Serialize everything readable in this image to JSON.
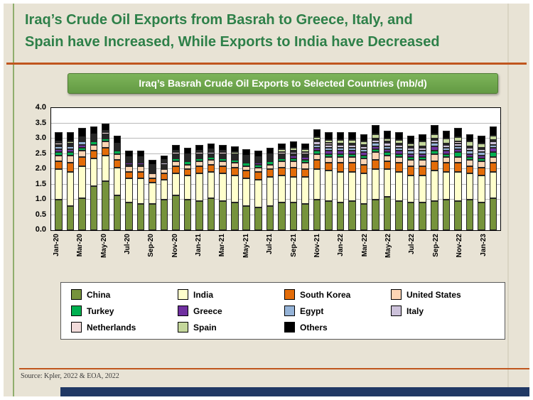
{
  "slide": {
    "title_line1": "Iraq’s Crude Oil Exports from Basrah to Greece, Italy, and",
    "title_line2": "Spain have Increased, While Exports to India have Decreased",
    "source": "Source: Kpler, 2022 & EOA, 2022"
  },
  "chart": {
    "header": "Iraq’s Basrah Crude Oil Exports to Selected Countries (mb/d)"
  },
  "colors": {
    "slide_background": "#e8e3d5",
    "title_green": "#2e8049",
    "rule_orange": "#c0561e",
    "header_banner_green": "#70ad47",
    "bottom_bar_navy": "#203864"
  },
  "chart_data": {
    "type": "bar",
    "stacked": true,
    "title": "Iraq’s Basrah Crude Oil Exports to Selected Countries (mb/d)",
    "ylabel": "mb/d",
    "xlabel": "",
    "ylim": [
      0,
      4.0
    ],
    "y_ticks": [
      0.0,
      0.5,
      1.0,
      1.5,
      2.0,
      2.5,
      3.0,
      3.5,
      4.0
    ],
    "grid": "horizontal",
    "legend_position": "bottom",
    "x_ticks_shown_every": 2,
    "categories": [
      "Jan-20",
      "Feb-20",
      "Mar-20",
      "Apr-20",
      "May-20",
      "Jun-20",
      "Jul-20",
      "Aug-20",
      "Sep-20",
      "Oct-20",
      "Nov-20",
      "Dec-20",
      "Jan-21",
      "Feb-21",
      "Mar-21",
      "Apr-21",
      "May-21",
      "Jun-21",
      "Jul-21",
      "Aug-21",
      "Sep-21",
      "Oct-21",
      "Nov-21",
      "Dec-21",
      "Jan-22",
      "Feb-22",
      "Mar-22",
      "Apr-22",
      "May-22",
      "Jun-22",
      "Jul-22",
      "Aug-22",
      "Sep-22",
      "Oct-22",
      "Nov-22",
      "Dec-22",
      "Jan-23",
      "Feb-23"
    ],
    "x_tick_labels": [
      "Jan-20",
      "Mar-20",
      "May-20",
      "Jul-20",
      "Sep-20",
      "Nov-20",
      "Jan-21",
      "Mar-21",
      "May-21",
      "Jul-21",
      "Sep-21",
      "Nov-21",
      "Jan-22",
      "Mar-22",
      "May-22",
      "Jul-22",
      "Sep-22",
      "Nov-22",
      "Jan-23"
    ],
    "series": [
      {
        "name": "China",
        "color": "#76933c",
        "values": [
          1.0,
          0.8,
          1.05,
          1.45,
          1.6,
          1.15,
          0.9,
          0.85,
          0.85,
          1.0,
          1.15,
          1.0,
          0.95,
          1.05,
          0.95,
          0.9,
          0.8,
          0.75,
          0.8,
          0.9,
          0.9,
          0.85,
          1.0,
          0.95,
          0.9,
          0.95,
          0.85,
          1.0,
          1.1,
          0.95,
          0.9,
          0.9,
          0.95,
          1.0,
          0.95,
          1.0,
          0.9,
          1.05
        ]
      },
      {
        "name": "India",
        "color": "#ffffcc",
        "values": [
          1.0,
          1.1,
          1.05,
          0.9,
          0.85,
          0.9,
          0.8,
          0.85,
          0.7,
          0.65,
          0.7,
          0.8,
          0.9,
          0.85,
          0.9,
          0.9,
          0.9,
          0.9,
          0.95,
          0.9,
          0.85,
          0.9,
          1.0,
          1.0,
          1.0,
          0.95,
          1.0,
          1.0,
          0.9,
          0.95,
          0.9,
          0.9,
          1.0,
          0.9,
          0.95,
          0.85,
          0.9,
          0.85
        ]
      },
      {
        "name": "South Korea",
        "color": "#e36c09",
        "values": [
          0.25,
          0.3,
          0.3,
          0.25,
          0.25,
          0.25,
          0.2,
          0.2,
          0.15,
          0.2,
          0.25,
          0.2,
          0.25,
          0.25,
          0.25,
          0.25,
          0.25,
          0.25,
          0.25,
          0.25,
          0.3,
          0.25,
          0.3,
          0.25,
          0.3,
          0.3,
          0.3,
          0.3,
          0.25,
          0.3,
          0.3,
          0.3,
          0.3,
          0.3,
          0.3,
          0.25,
          0.25,
          0.3
        ]
      },
      {
        "name": "United States",
        "color": "#fcd5b4",
        "values": [
          0.2,
          0.25,
          0.2,
          0.2,
          0.2,
          0.2,
          0.2,
          0.2,
          0.15,
          0.15,
          0.15,
          0.15,
          0.15,
          0.15,
          0.15,
          0.15,
          0.15,
          0.15,
          0.15,
          0.2,
          0.2,
          0.2,
          0.2,
          0.2,
          0.2,
          0.2,
          0.2,
          0.25,
          0.2,
          0.2,
          0.2,
          0.2,
          0.25,
          0.2,
          0.2,
          0.2,
          0.2,
          0.2
        ]
      },
      {
        "name": "Turkey",
        "color": "#00b050",
        "values": [
          0.1,
          0.1,
          0.1,
          0.1,
          0.1,
          0.1,
          0.05,
          0.05,
          0.05,
          0.05,
          0.1,
          0.1,
          0.1,
          0.1,
          0.1,
          0.1,
          0.1,
          0.1,
          0.1,
          0.1,
          0.1,
          0.1,
          0.1,
          0.1,
          0.1,
          0.1,
          0.1,
          0.1,
          0.1,
          0.1,
          0.1,
          0.1,
          0.1,
          0.1,
          0.15,
          0.1,
          0.1,
          0.15
        ]
      },
      {
        "name": "Greece",
        "color": "#7030a0",
        "values": [
          0.1,
          0.1,
          0.1,
          0.05,
          0.05,
          0.05,
          0.05,
          0.05,
          0.05,
          0.05,
          0.05,
          0.05,
          0.05,
          0.05,
          0.05,
          0.05,
          0.05,
          0.05,
          0.05,
          0.05,
          0.1,
          0.1,
          0.1,
          0.1,
          0.1,
          0.1,
          0.1,
          0.1,
          0.1,
          0.1,
          0.1,
          0.1,
          0.15,
          0.1,
          0.1,
          0.1,
          0.1,
          0.15
        ]
      },
      {
        "name": "Egypt",
        "color": "#95b3d7",
        "values": [
          0.1,
          0.1,
          0.1,
          0.05,
          0.05,
          0.05,
          0.05,
          0.05,
          0.05,
          0.05,
          0.05,
          0.05,
          0.05,
          0.05,
          0.05,
          0.05,
          0.05,
          0.05,
          0.05,
          0.05,
          0.05,
          0.05,
          0.1,
          0.1,
          0.1,
          0.1,
          0.1,
          0.1,
          0.1,
          0.1,
          0.1,
          0.1,
          0.1,
          0.1,
          0.1,
          0.1,
          0.1,
          0.1
        ]
      },
      {
        "name": "Italy",
        "color": "#ccc1da",
        "values": [
          0.05,
          0.05,
          0.05,
          0.05,
          0.05,
          0.05,
          0.05,
          0.05,
          0.05,
          0.05,
          0.05,
          0.05,
          0.05,
          0.05,
          0.05,
          0.05,
          0.05,
          0.05,
          0.05,
          0.05,
          0.05,
          0.05,
          0.1,
          0.1,
          0.1,
          0.1,
          0.1,
          0.1,
          0.1,
          0.1,
          0.1,
          0.1,
          0.1,
          0.1,
          0.1,
          0.1,
          0.1,
          0.1
        ]
      },
      {
        "name": "Netherlands",
        "color": "#f2dcdb",
        "values": [
          0.05,
          0.05,
          0.05,
          0.05,
          0.05,
          0.05,
          0.05,
          0.05,
          0.05,
          0.05,
          0.05,
          0.05,
          0.05,
          0.05,
          0.05,
          0.05,
          0.05,
          0.05,
          0.05,
          0.05,
          0.05,
          0.05,
          0.05,
          0.05,
          0.05,
          0.05,
          0.05,
          0.05,
          0.05,
          0.05,
          0.05,
          0.05,
          0.05,
          0.05,
          0.05,
          0.05,
          0.05,
          0.05
        ]
      },
      {
        "name": "Spain",
        "color": "#c4d79b",
        "values": [
          0.05,
          0.05,
          0.05,
          0.05,
          0.05,
          0.05,
          0.05,
          0.05,
          0.05,
          0.05,
          0.05,
          0.05,
          0.05,
          0.05,
          0.05,
          0.05,
          0.05,
          0.05,
          0.05,
          0.1,
          0.1,
          0.1,
          0.1,
          0.1,
          0.1,
          0.1,
          0.1,
          0.15,
          0.1,
          0.1,
          0.1,
          0.15,
          0.15,
          0.15,
          0.15,
          0.15,
          0.15,
          0.15
        ]
      },
      {
        "name": "Others",
        "color": "#000000",
        "values": [
          0.3,
          0.3,
          0.3,
          0.25,
          0.25,
          0.25,
          0.2,
          0.2,
          0.15,
          0.15,
          0.2,
          0.2,
          0.2,
          0.2,
          0.2,
          0.2,
          0.2,
          0.2,
          0.2,
          0.2,
          0.2,
          0.2,
          0.25,
          0.25,
          0.25,
          0.25,
          0.25,
          0.3,
          0.25,
          0.25,
          0.25,
          0.25,
          0.3,
          0.25,
          0.3,
          0.25,
          0.25,
          0.3
        ]
      }
    ]
  }
}
